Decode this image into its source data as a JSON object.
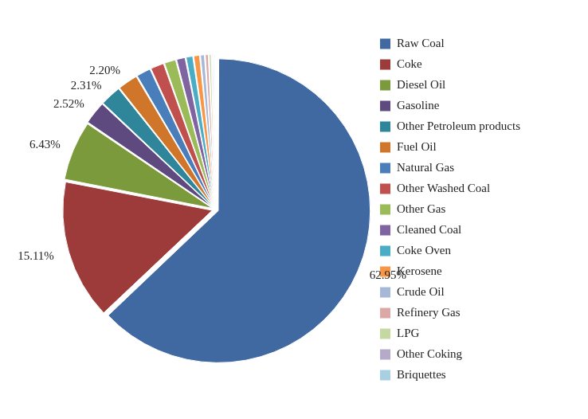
{
  "chart_data": {
    "type": "pie",
    "categories": [
      "Raw Coal",
      "Coke",
      "Diesel Oil",
      "Gasoline",
      "Other Petroleum products",
      "Fuel Oil",
      "Natural Gas",
      "Other Washed Coal",
      "Other Gas",
      "Cleaned Coal",
      "Coke Oven",
      "Kerosene",
      "Crude Oil",
      "Refinery Gas",
      "LPG",
      "Other Coking",
      "Briquettes"
    ],
    "values": [
      62.95,
      15.11,
      6.43,
      2.52,
      2.31,
      2.2,
      1.6,
      1.5,
      1.3,
      1.0,
      0.8,
      0.7,
      0.5,
      0.4,
      0.3,
      0.2,
      0.18
    ],
    "value_labels": [
      "62.95%",
      "15.11%",
      "6.43%",
      "2.52%",
      "2.31%",
      "2.20%",
      null,
      null,
      null,
      null,
      null,
      null,
      null,
      null,
      null,
      null,
      null
    ],
    "colors": [
      "#3f69a0",
      "#9c3b3a",
      "#7b9a3c",
      "#5f4a80",
      "#2f8599",
      "#d0762a",
      "#4a7ebb",
      "#c0504d",
      "#9bbb59",
      "#8064a2",
      "#4bacc6",
      "#f79646",
      "#a5b8d8",
      "#dca8a6",
      "#c6d8a2",
      "#b5aac8",
      "#a8d0e2"
    ],
    "data_labels": true,
    "legend": "right"
  }
}
